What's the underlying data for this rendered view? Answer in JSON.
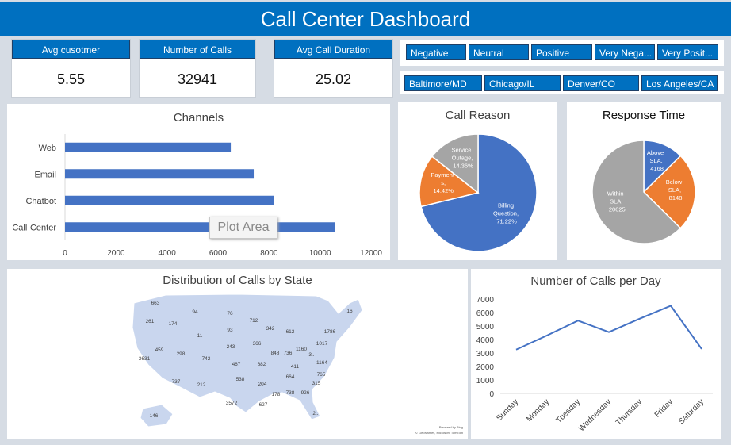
{
  "header": {
    "title": "Call Center Dashboard"
  },
  "kpis": [
    {
      "label": "Avg cusotmer",
      "value": "5.55"
    },
    {
      "label": "Number of Calls",
      "value": "32941"
    },
    {
      "label": "Avg Call Duration",
      "value": "25.02"
    }
  ],
  "sentiment_slicer": {
    "items": [
      "Negative",
      "Neutral",
      "Positive",
      "Very Nega...",
      "Very Posit..."
    ]
  },
  "city_slicer": {
    "items": [
      "Baltimore/MD",
      "Chicago/IL",
      "Denver/CO",
      "Los Angeles/CA"
    ]
  },
  "plot_area_tooltip": "Plot Area",
  "map": {
    "title": "Distribution of Calls by State",
    "credit_1": "Powered by Bing",
    "credit_2": "© GeoNames, Microsoft, TomTom",
    "state_labels": [
      "663",
      "94",
      "76",
      "16",
      "261",
      "174",
      "712",
      "342",
      "1786",
      "93",
      "612",
      "11",
      "1017",
      "366",
      "1160",
      "243",
      "459",
      "298",
      "848",
      "736",
      "3..",
      "742",
      "3631",
      "1164",
      "467",
      "682",
      "411",
      "765",
      "538",
      "664",
      "737",
      "212",
      "204",
      "315",
      "178",
      "738",
      "926",
      "3572",
      "627",
      "2..",
      "146"
    ]
  },
  "colors": {
    "accent": "#0070c0",
    "bar": "#4472c4",
    "orange": "#ed7d31",
    "gray": "#a5a5a5",
    "map_fill": "#c9d6ee"
  },
  "chart_data": [
    {
      "type": "bar",
      "title": "Channels",
      "categories": [
        "Call-Center",
        "Chatbot",
        "Email",
        "Web"
      ],
      "values": [
        10600,
        8200,
        7400,
        6500
      ],
      "xlim": [
        0,
        12000
      ],
      "xticks": [
        "0",
        "2000",
        "4000",
        "6000",
        "8000",
        "10000",
        "12000"
      ],
      "grid": false
    },
    {
      "type": "pie",
      "title": "Call Reason",
      "slices": [
        {
          "label": "Billing Question, 71.22%",
          "value": 71.22,
          "color": "#4472c4"
        },
        {
          "label": "Payment s, 14.42%",
          "value": 14.42,
          "color": "#ed7d31"
        },
        {
          "label": "Service Outage, 14.36%",
          "value": 14.36,
          "color": "#a5a5a5"
        }
      ]
    },
    {
      "type": "pie",
      "title": "Response Time",
      "slices": [
        {
          "label": "Above SLA, 4168",
          "value": 4168,
          "color": "#4472c4"
        },
        {
          "label": "Below SLA, 8148",
          "value": 8148,
          "color": "#ed7d31"
        },
        {
          "label": "Within SLA, 20625",
          "value": 20625,
          "color": "#a5a5a5"
        }
      ]
    },
    {
      "type": "line",
      "title": "Number of Calls per Day",
      "categories": [
        "Sunday",
        "Monday",
        "Tuesday",
        "Wednesday",
        "Thursday",
        "Friday",
        "Saturday"
      ],
      "values": [
        3250,
        4300,
        5400,
        4550,
        5550,
        6500,
        3300
      ],
      "ylim": [
        0,
        7000
      ],
      "yticks": [
        "0",
        "1000",
        "2000",
        "3000",
        "4000",
        "5000",
        "6000",
        "7000"
      ],
      "grid": false
    }
  ]
}
